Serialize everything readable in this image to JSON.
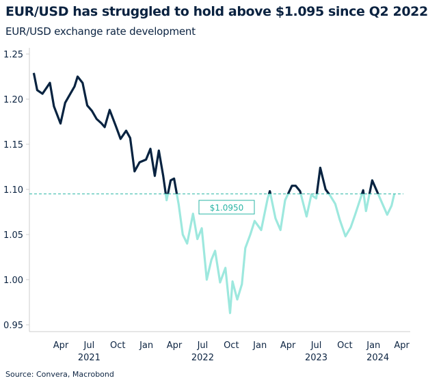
{
  "chart_data": {
    "type": "line",
    "title": "EUR/USD has struggled to hold above $1.095 since Q2 2022",
    "subtitle": "EUR/USD exchange rate development",
    "source": "Source: Convera, Macrobond",
    "ylim": [
      0.95,
      1.25
    ],
    "yticks": [
      "0.95",
      "1.00",
      "1.05",
      "1.10",
      "1.15",
      "1.20",
      "1.25"
    ],
    "xticks": [
      {
        "date": "2021-04-01",
        "label": "Apr"
      },
      {
        "date": "2021-07-01",
        "label": "Jul"
      },
      {
        "date": "2021-10-01",
        "label": "Oct"
      },
      {
        "date": "2022-01-01",
        "label": "Jan"
      },
      {
        "date": "2022-04-01",
        "label": "Apr"
      },
      {
        "date": "2022-07-01",
        "label": "Jul"
      },
      {
        "date": "2022-10-01",
        "label": "Oct"
      },
      {
        "date": "2023-01-01",
        "label": "Jan"
      },
      {
        "date": "2023-04-01",
        "label": "Apr"
      },
      {
        "date": "2023-07-01",
        "label": "Jul"
      },
      {
        "date": "2023-10-01",
        "label": "Oct"
      },
      {
        "date": "2024-01-01",
        "label": "Jan"
      },
      {
        "date": "2024-04-01",
        "label": "Apr"
      }
    ],
    "years": [
      {
        "date": "2021-07-01",
        "label": "2021"
      },
      {
        "date": "2022-07-01",
        "label": "2022"
      },
      {
        "date": "2023-07-01",
        "label": "2023"
      },
      {
        "date": "2024-01-15",
        "label": "2024"
      }
    ],
    "threshold": {
      "value": 1.095,
      "label": "$1.0950"
    },
    "colors": {
      "above": "#0a2240",
      "below": "#9de8de",
      "threshold": "#2ab5a5"
    },
    "grid": false,
    "series": [
      {
        "x": [
          "2021-01-04",
          "2021-01-15",
          "2021-02-01",
          "2021-02-15",
          "2021-02-25",
          "2021-03-10",
          "2021-03-31",
          "2021-04-15",
          "2021-04-30",
          "2021-05-15",
          "2021-05-25",
          "2021-06-10",
          "2021-06-25",
          "2021-07-10",
          "2021-07-25",
          "2021-08-10",
          "2021-08-20",
          "2021-09-05",
          "2021-09-25",
          "2021-10-10",
          "2021-10-28",
          "2021-11-10",
          "2021-11-24",
          "2021-12-10",
          "2021-12-31",
          "2022-01-14",
          "2022-01-28",
          "2022-02-10",
          "2022-02-24",
          "2022-03-07",
          "2022-03-20",
          "2022-03-31",
          "2022-04-15",
          "2022-04-28",
          "2022-05-12",
          "2022-05-31",
          "2022-06-14",
          "2022-06-28",
          "2022-07-14",
          "2022-07-29",
          "2022-08-10",
          "2022-08-26",
          "2022-09-12",
          "2022-09-27",
          "2022-10-05",
          "2022-10-20",
          "2022-11-04",
          "2022-11-15",
          "2022-12-01",
          "2022-12-15",
          "2023-01-05",
          "2023-01-26",
          "2023-02-02",
          "2023-02-20",
          "2023-03-08",
          "2023-03-23",
          "2023-04-14",
          "2023-04-26",
          "2023-05-10",
          "2023-05-31",
          "2023-06-15",
          "2023-07-01",
          "2023-07-14",
          "2023-07-31",
          "2023-08-15",
          "2023-08-31",
          "2023-09-15",
          "2023-10-03",
          "2023-10-20",
          "2023-11-03",
          "2023-11-29",
          "2023-12-08",
          "2023-12-28",
          "2024-01-12",
          "2024-01-31",
          "2024-02-14",
          "2024-02-28",
          "2024-03-08"
        ],
        "y": [
          1.229,
          1.21,
          1.206,
          1.213,
          1.218,
          1.192,
          1.173,
          1.196,
          1.205,
          1.214,
          1.225,
          1.218,
          1.193,
          1.187,
          1.178,
          1.173,
          1.169,
          1.188,
          1.17,
          1.156,
          1.165,
          1.157,
          1.12,
          1.13,
          1.133,
          1.145,
          1.115,
          1.143,
          1.115,
          1.088,
          1.11,
          1.112,
          1.083,
          1.05,
          1.04,
          1.073,
          1.045,
          1.057,
          1.0,
          1.022,
          1.032,
          0.997,
          1.013,
          0.963,
          0.998,
          0.978,
          0.995,
          1.035,
          1.05,
          1.065,
          1.055,
          1.09,
          1.098,
          1.068,
          1.055,
          1.088,
          1.104,
          1.104,
          1.098,
          1.07,
          1.094,
          1.09,
          1.124,
          1.1,
          1.093,
          1.084,
          1.066,
          1.048,
          1.058,
          1.072,
          1.099,
          1.076,
          1.11,
          1.098,
          1.083,
          1.072,
          1.082,
          1.095
        ]
      }
    ]
  }
}
